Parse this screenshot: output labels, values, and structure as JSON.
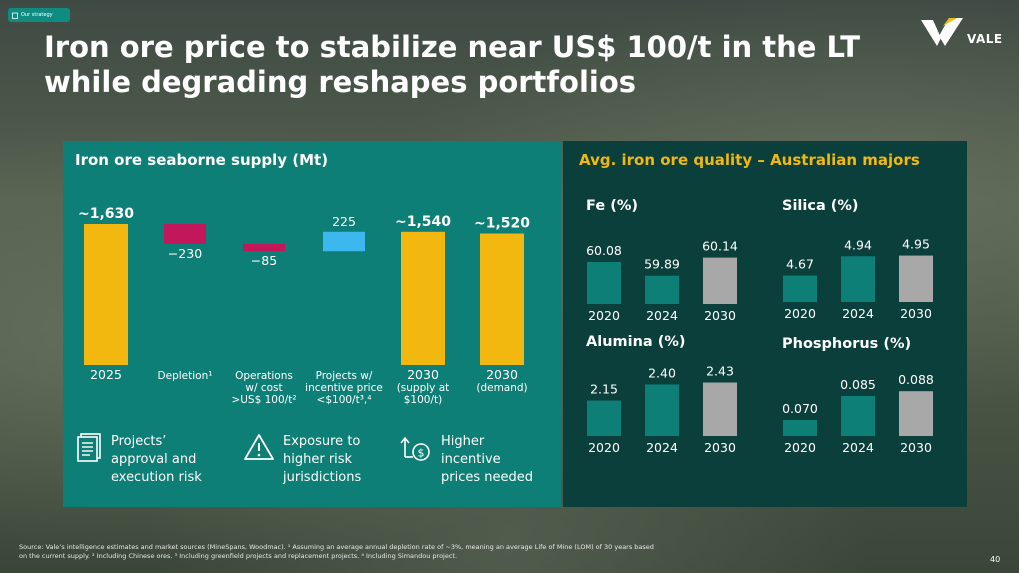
{
  "tag": {
    "label": "Our strategy"
  },
  "title": "Iron ore price to stabilize near US$ 100/t in the LT while degrading reshapes portfolios",
  "logo": {
    "text": "VALE"
  },
  "left_panel": {
    "title": "Iron ore seaborne supply (Mt)",
    "risks": [
      {
        "icon": "document-icon",
        "label": "Projects’\napproval and\nexecution risk"
      },
      {
        "icon": "warning-icon",
        "label": "Exposure to\nhigher risk\njurisdictions"
      },
      {
        "icon": "dollar-cycle-icon",
        "label": "Higher\nincentive\nprices needed"
      }
    ]
  },
  "right_panel": {
    "title": "Avg. iron ore quality – Australian majors"
  },
  "colors": {
    "yellow": "#f2b80f",
    "crimson": "#c2185b",
    "blue": "#3db8ee",
    "teal": "#0d7f77",
    "gray": "#a8a8a8",
    "dark_teal": "#0b3f3c"
  },
  "chart_data": [
    {
      "type": "bar",
      "subtype": "waterfall",
      "title": "Iron ore seaborne supply (Mt)",
      "categories": [
        {
          "label": "2025",
          "sub": ""
        },
        {
          "label": "Depletion¹",
          "sub": ""
        },
        {
          "label": "Operations",
          "sub": "w/ cost\n>US$ 100/t²"
        },
        {
          "label": "Projects w/",
          "sub": "incentive price\n<$100/t³,⁴"
        },
        {
          "label": "2030",
          "sub": "(supply at\n$100/t)"
        },
        {
          "label": "2030",
          "sub": "(demand)"
        }
      ],
      "values": [
        1630,
        -230,
        -85,
        225,
        1540,
        1520
      ],
      "value_labels": [
        "~1,630",
        "−230",
        "−85",
        "225",
        "~1,540",
        "~1,520"
      ],
      "kinds": [
        "total",
        "decrease",
        "decrease",
        "increase",
        "total",
        "total"
      ]
    },
    {
      "type": "bar",
      "title": "Fe (%)",
      "categories": [
        "2020",
        "2024",
        "2030"
      ],
      "values": [
        60.08,
        59.89,
        60.14
      ],
      "value_labels": [
        "60.08",
        "59.89",
        "60.14"
      ],
      "ylim": [
        59.5,
        60.3
      ]
    },
    {
      "type": "bar",
      "title": "Silica (%)",
      "categories": [
        "2020",
        "2024",
        "2030"
      ],
      "values": [
        4.67,
        4.94,
        4.95
      ],
      "value_labels": [
        "4.67",
        "4.94",
        "4.95"
      ],
      "ylim": [
        4.3,
        5.0
      ]
    },
    {
      "type": "bar",
      "title": "Alumina (%)",
      "categories": [
        "2020",
        "2024",
        "2030"
      ],
      "values": [
        2.15,
        2.4,
        2.43
      ],
      "value_labels": [
        "2.15",
        "2.40",
        "2.43"
      ],
      "ylim": [
        1.6,
        2.5
      ]
    },
    {
      "type": "bar",
      "title": "Phosphorus (%)",
      "categories": [
        "2020",
        "2024",
        "2030"
      ],
      "values": [
        0.07,
        0.085,
        0.088
      ],
      "value_labels": [
        "0.070",
        "0.085",
        "0.088"
      ],
      "ylim": [
        0.06,
        0.09
      ]
    }
  ],
  "source": "Source: Vale’s intelligence estimates and market sources (MineSpans, Woodmac). ¹ Assuming an average annual depletion rate of ~3%, meaning an average Life of Mine (LOM) of 30 years based on the current supply. ² Including Chinese ores. ³ Including greenfield projects and replacement projects. ⁴ Including Simandou project.",
  "page_number": "40"
}
